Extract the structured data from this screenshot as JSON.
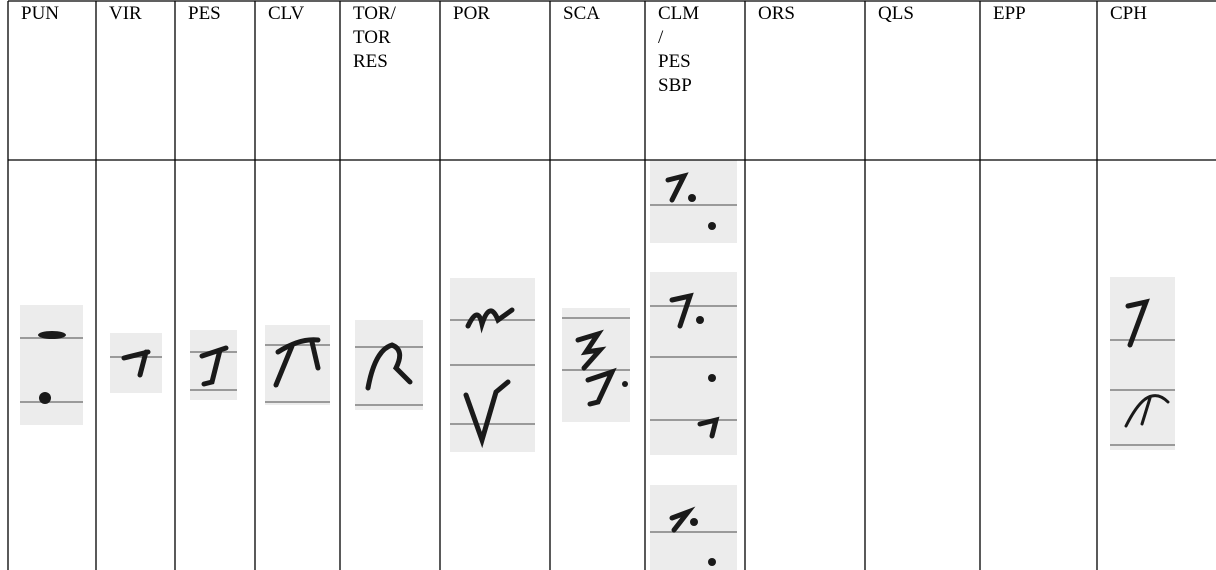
{
  "table": {
    "header": [
      [
        "PUN"
      ],
      [
        "VIR"
      ],
      [
        "PES"
      ],
      [
        "CLV"
      ],
      [
        "TOR/",
        "TOR",
        "RES"
      ],
      [
        "POR"
      ],
      [
        "SCA"
      ],
      [
        "CLM",
        "/",
        "PES",
        "SBP"
      ],
      [
        "ORS"
      ],
      [
        "QLS"
      ],
      [
        "EPP"
      ],
      [
        "CPH"
      ]
    ]
  }
}
